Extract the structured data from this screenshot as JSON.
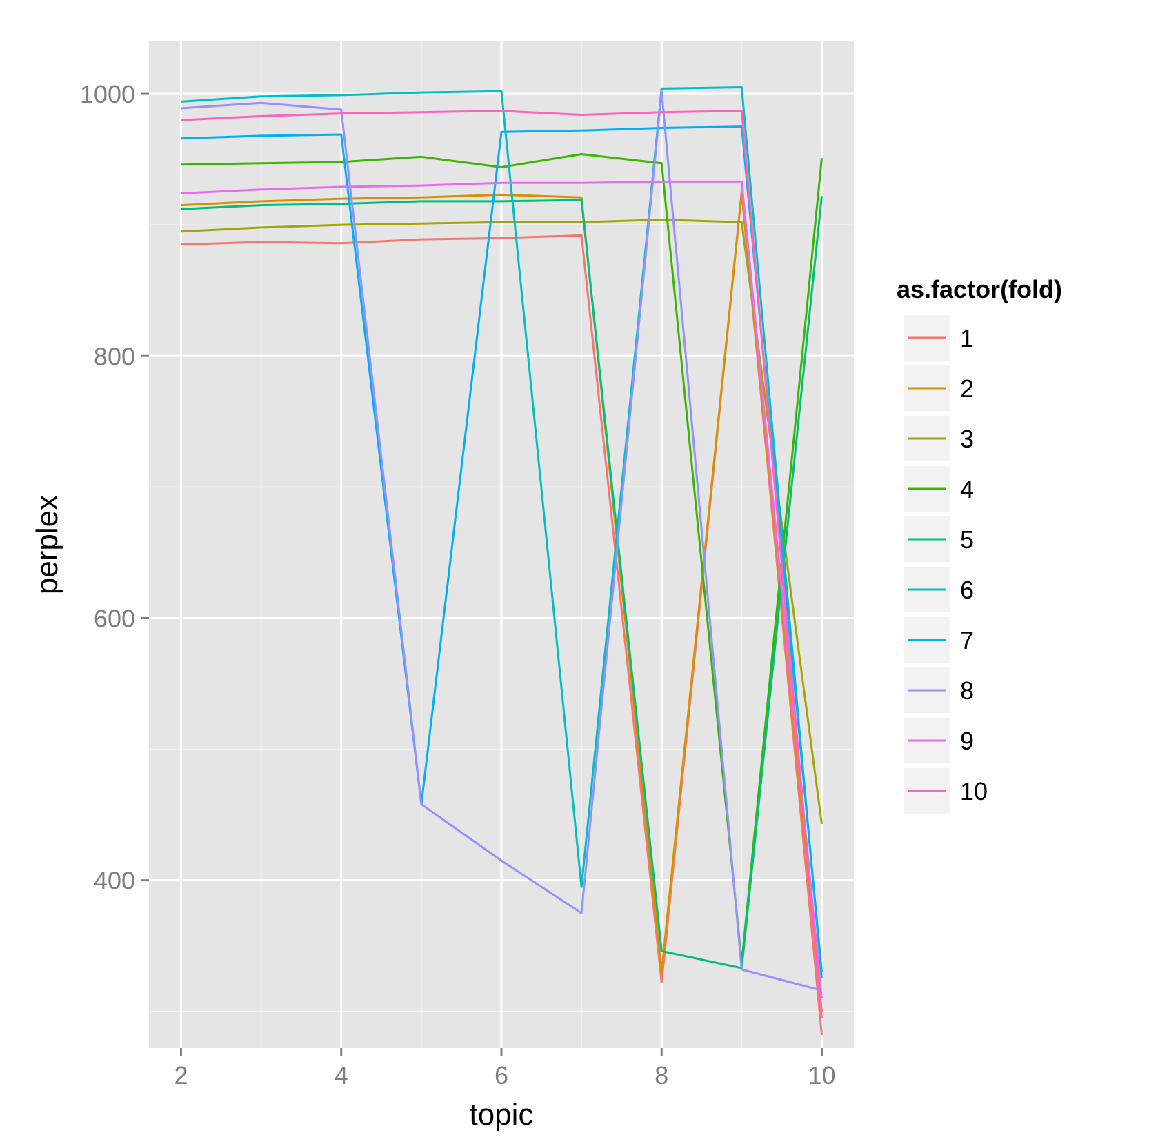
{
  "chart_data": {
    "type": "line",
    "xlabel": "topic",
    "ylabel": "perplex",
    "x_ticks": [
      2,
      4,
      6,
      8,
      10
    ],
    "y_ticks": [
      400,
      600,
      800,
      1000
    ],
    "xlim": [
      1.6,
      10.4
    ],
    "ylim": [
      272,
      1040
    ],
    "grid": true,
    "legend_title": "as.factor(fold)",
    "legend_position": "right",
    "x": [
      2,
      3,
      4,
      5,
      6,
      7,
      8,
      9,
      10
    ],
    "series": [
      {
        "name": "1",
        "color": "#F8766D",
        "values": [
          885,
          887,
          886,
          889,
          890,
          892,
          322,
          925,
          282
        ]
      },
      {
        "name": "2",
        "color": "#D89000",
        "values": [
          915,
          918,
          920,
          921,
          923,
          921,
          330,
          925,
          300
        ]
      },
      {
        "name": "3",
        "color": "#A3A500",
        "values": [
          895,
          898,
          900,
          901,
          902,
          902,
          904,
          902,
          443
        ]
      },
      {
        "name": "4",
        "color": "#39B600",
        "values": [
          946,
          947,
          948,
          952,
          944,
          954,
          947,
          337,
          951
        ]
      },
      {
        "name": "5",
        "color": "#00BF7D",
        "values": [
          912,
          915,
          916,
          918,
          918,
          919,
          346,
          333,
          922
        ]
      },
      {
        "name": "6",
        "color": "#00BFC4",
        "values": [
          994,
          998,
          999,
          1001,
          1002,
          395,
          1004,
          1005,
          325
        ]
      },
      {
        "name": "7",
        "color": "#00B0F6",
        "values": [
          966,
          968,
          969,
          458,
          971,
          972,
          974,
          975,
          330
        ]
      },
      {
        "name": "8",
        "color": "#9590FF",
        "values": [
          989,
          993,
          988,
          458,
          415,
          375,
          1002,
          332,
          316
        ]
      },
      {
        "name": "9",
        "color": "#E76BF3",
        "values": [
          924,
          927,
          929,
          930,
          932,
          932,
          933,
          933,
          310
        ]
      },
      {
        "name": "10",
        "color": "#FF62BC",
        "values": [
          980,
          983,
          985,
          986,
          987,
          984,
          986,
          987,
          295
        ]
      }
    ]
  }
}
